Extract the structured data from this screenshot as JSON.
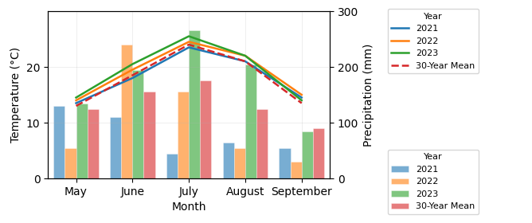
{
  "chart_data": {
    "type": "combo",
    "categories": [
      "May",
      "June",
      "July",
      "August",
      "September"
    ],
    "xlabel": "Month",
    "ylabel": "Temperature (°C)",
    "y2label": "Precipitation (mm)",
    "legend_title": "Year",
    "legend": "right",
    "grid": true,
    "ylim": [
      0,
      30
    ],
    "yticks": [
      0,
      10,
      20
    ],
    "y2lim": [
      0,
      300
    ],
    "y2ticks": [
      0,
      100,
      200,
      300
    ],
    "series": [
      {
        "name": "2021",
        "type": "line",
        "axis": "y",
        "line_style": "solid",
        "values": [
          13.5,
          18,
          23.5,
          21,
          14.5
        ]
      },
      {
        "name": "2022",
        "type": "line",
        "axis": "y",
        "line_style": "solid",
        "values": [
          14,
          19.5,
          24.5,
          22,
          15
        ]
      },
      {
        "name": "2023",
        "type": "line",
        "axis": "y",
        "line_style": "solid",
        "values": [
          14.5,
          20.5,
          25.5,
          22,
          14
        ]
      },
      {
        "name": "30-Year Mean",
        "type": "line",
        "axis": "y",
        "line_style": "dashed",
        "values": [
          13,
          18.5,
          24,
          21,
          13.5
        ]
      },
      {
        "name": "2021",
        "type": "bar",
        "axis": "y2",
        "values": [
          130,
          110,
          45,
          65,
          55
        ]
      },
      {
        "name": "2022",
        "type": "bar",
        "axis": "y2",
        "values": [
          55,
          240,
          155,
          55,
          30
        ]
      },
      {
        "name": "2023",
        "type": "bar",
        "axis": "y2",
        "values": [
          135,
          195,
          265,
          205,
          85
        ]
      },
      {
        "name": "30-Year Mean",
        "type": "bar",
        "axis": "y2",
        "values": [
          125,
          155,
          175,
          125,
          90
        ]
      }
    ]
  }
}
